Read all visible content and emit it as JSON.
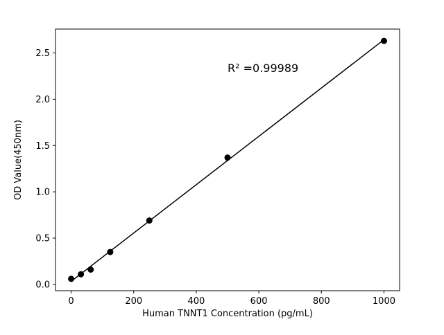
{
  "chart_data": {
    "type": "scatter",
    "title": "",
    "xlabel": "Human TNNT1 Concentration (pg/mL)",
    "ylabel": "OD Value(450nm)",
    "annotation": "R² =0.99989",
    "x": [
      0,
      31.25,
      62.5,
      125,
      250,
      500,
      1000
    ],
    "y": [
      0.06,
      0.11,
      0.16,
      0.35,
      0.69,
      1.37,
      2.63
    ],
    "xlim": [
      -50,
      1050
    ],
    "ylim": [
      -0.068,
      2.758
    ],
    "xticks": [
      0,
      200,
      400,
      600,
      800,
      1000
    ],
    "xtick_labels": [
      "0",
      "200",
      "400",
      "600",
      "800",
      "1000"
    ],
    "yticks": [
      0.0,
      0.5,
      1.0,
      1.5,
      2.0,
      2.5
    ],
    "ytick_labels": [
      "0.0",
      "0.5",
      "1.0",
      "1.5",
      "2.0",
      "2.5"
    ],
    "line_color": "#000000",
    "marker_color": "#000000",
    "background_color": "#ffffff",
    "grid": false,
    "legend": null
  }
}
